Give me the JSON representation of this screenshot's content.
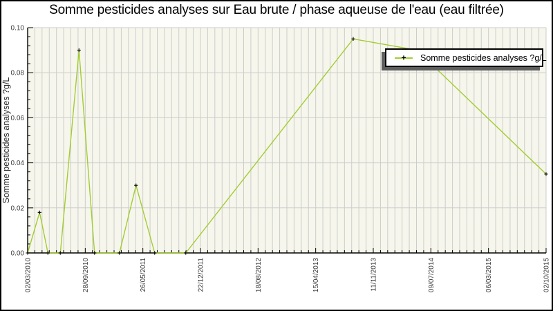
{
  "colors": {
    "line_green": "#A2CC32",
    "plot_bg": "#F6F6EC",
    "grid": "#CCCCCC",
    "axis": "#000000",
    "tick_text": "#3A3A3A",
    "title_text": "#000000",
    "marker": "#000000",
    "legend_shadow": "#5E5E5E",
    "frame": "#000000"
  },
  "chart_data": {
    "type": "line",
    "title": "Somme pesticides analyses sur Eau brute / phase aqueuse de l'eau (eau filtrée)",
    "xlabel": "",
    "ylabel": "Somme pesticides analyses ?g/L",
    "ylim": [
      0,
      0.1
    ],
    "y_tick_labels": [
      "0.00",
      "0.02",
      "0.04",
      "0.06",
      "0.08",
      "0.10"
    ],
    "y_major_step": 0.02,
    "y_minor_step": 0.004,
    "x_tick_labels": [
      "02/03/2010",
      "28/09/2010",
      "26/05/2011",
      "22/12/2011",
      "18/08/2012",
      "15/04/2013",
      "11/11/2013",
      "09/07/2014",
      "06/03/2015",
      "02/10/2015"
    ],
    "x_minor_divisions_per_major": 8,
    "grid": {
      "vertical": "every minor x tick",
      "horizontal": "every major y tick"
    },
    "legend": {
      "label": "Somme pesticides analyses ?g/L",
      "marker_glyph": "+",
      "position": "top-right"
    },
    "series": [
      {
        "name": "Somme pesticides analyses ?g/L",
        "marker": "+",
        "points": [
          {
            "x_frac": 0.0,
            "value": 0.0
          },
          {
            "x_frac": 0.023,
            "value": 0.018
          },
          {
            "x_frac": 0.039,
            "value": 0.0
          },
          {
            "x_frac": 0.063,
            "value": 0.0
          },
          {
            "x_frac": 0.099,
            "value": 0.09
          },
          {
            "x_frac": 0.129,
            "value": 0.0
          },
          {
            "x_frac": 0.177,
            "value": 0.0
          },
          {
            "x_frac": 0.209,
            "value": 0.03
          },
          {
            "x_frac": 0.245,
            "value": 0.0
          },
          {
            "x_frac": 0.305,
            "value": 0.0
          },
          {
            "x_frac": 0.628,
            "value": 0.095
          },
          {
            "x_frac": 0.751,
            "value": 0.09
          },
          {
            "x_frac": 1.0,
            "value": 0.035
          }
        ]
      }
    ]
  }
}
